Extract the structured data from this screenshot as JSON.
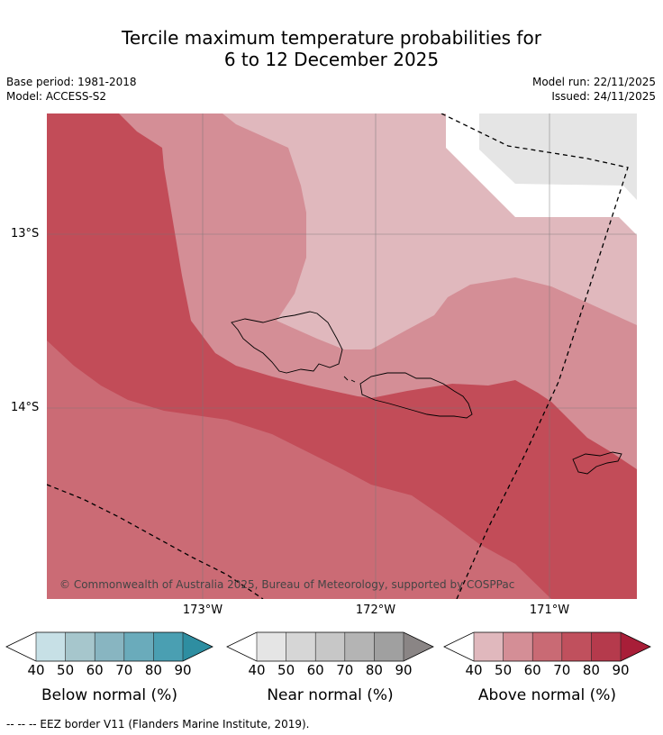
{
  "header": {
    "title_line1": "Tercile maximum temperature probabilities for",
    "title_line2": "6 to 12 December 2025",
    "base_period": "Base period: 1981-2018",
    "model": "Model: ACCESS-S2",
    "model_run": "Model run: 22/11/2025",
    "issued": "Issued: 24/11/2025"
  },
  "map": {
    "lat_labels": [
      "13°S",
      "14°S"
    ],
    "lon_labels": [
      "173°W",
      "172°W",
      "171°W"
    ],
    "copyright": "© Commonwealth of Australia 2025, Bureau of Meteorology, supported by COSPPac"
  },
  "colorbars": [
    {
      "title": "Below normal (%)",
      "ticks": [
        "40",
        "50",
        "60",
        "70",
        "80",
        "90"
      ],
      "colors": [
        "#c7e0e6",
        "#a6c6cc",
        "#88b5c1",
        "#6aabbb",
        "#4a9fb2",
        "#2e8ea1"
      ]
    },
    {
      "title": "Near normal (%)",
      "ticks": [
        "40",
        "50",
        "60",
        "70",
        "80",
        "90"
      ],
      "colors": [
        "#e5e5e5",
        "#d6d6d6",
        "#c7c7c7",
        "#b4b4b4",
        "#a0a0a0",
        "#8a8585"
      ]
    },
    {
      "title": "Above normal (%)",
      "ticks": [
        "40",
        "50",
        "60",
        "70",
        "80",
        "90"
      ],
      "colors": [
        "#e0b8bd",
        "#d48e96",
        "#c96a74",
        "#c0505d",
        "#b53a4c",
        "#a81e38"
      ]
    }
  ],
  "footer": {
    "eez_note": "--  --  -- EEZ border V11 (Flanders Marine Institute, 2019)."
  }
}
